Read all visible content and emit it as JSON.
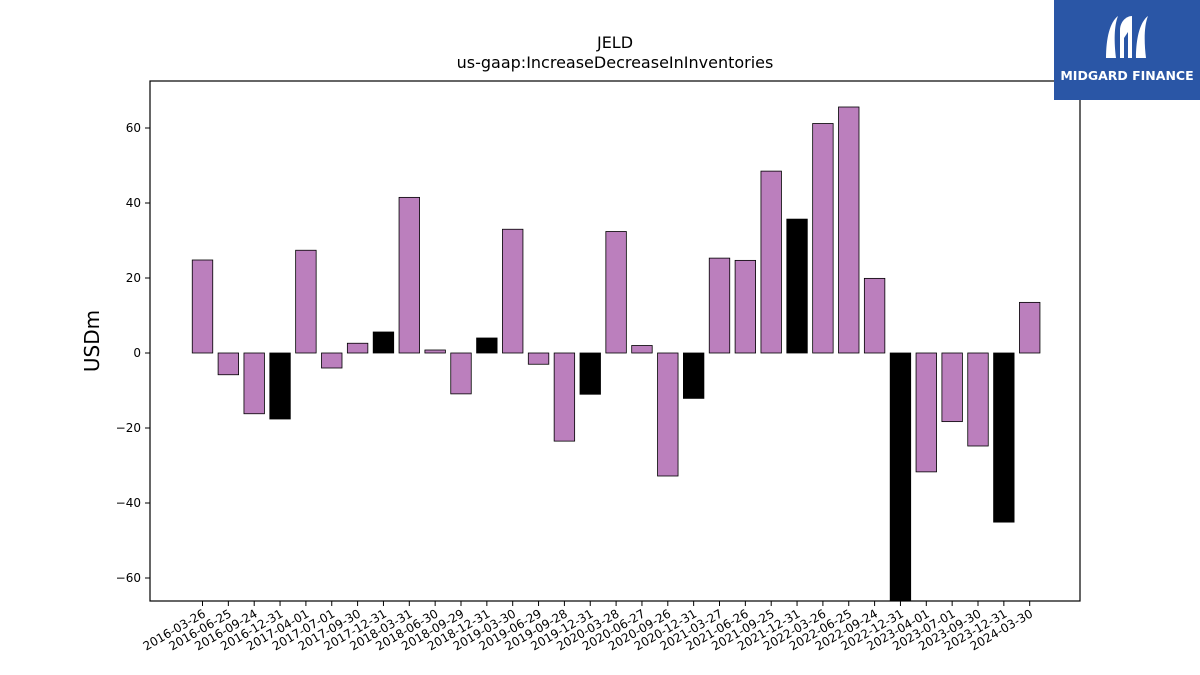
{
  "chart_data": {
    "type": "bar",
    "title": "JELD",
    "subtitle": "us-gaap:IncreaseDecreaseInInventories",
    "xlabel": "",
    "ylabel": "USDm",
    "ylim": [
      -66,
      72
    ],
    "yticks": [
      -60,
      -40,
      -20,
      0,
      20,
      40,
      60
    ],
    "ytick_labels": [
      "−60",
      "−40",
      "−20",
      "0",
      "20",
      "40",
      "60"
    ],
    "grid": false,
    "colors": {
      "quarter": "#bb7fbd",
      "annual": "#000000",
      "edge": "#000000"
    },
    "categories": [
      "2016-03-26",
      "2016-06-25",
      "2016-09-24",
      "2016-12-31",
      "2017-04-01",
      "2017-07-01",
      "2017-09-30",
      "2017-12-31",
      "2018-03-31",
      "2018-06-30",
      "2018-09-29",
      "2018-12-31",
      "2019-03-30",
      "2019-06-29",
      "2019-09-28",
      "2019-12-31",
      "2020-03-28",
      "2020-06-27",
      "2020-09-26",
      "2020-12-31",
      "2021-03-27",
      "2021-06-26",
      "2021-09-25",
      "2021-12-31",
      "2022-03-26",
      "2022-06-25",
      "2022-09-24",
      "2022-12-31",
      "2023-04-01",
      "2023-07-01",
      "2023-09-30",
      "2023-12-31",
      "2024-03-30"
    ],
    "values": [
      24.8,
      -5.8,
      -16.2,
      -17.6,
      27.4,
      -4.0,
      2.6,
      5.6,
      41.5,
      0.8,
      -10.9,
      4.0,
      33.0,
      -3.0,
      -23.5,
      -11.0,
      32.4,
      2.0,
      -32.8,
      -12.1,
      25.3,
      24.7,
      48.5,
      35.7,
      61.2,
      65.6,
      19.9,
      -66.0,
      -31.7,
      -18.3,
      -24.8,
      -45.1,
      13.5
    ],
    "annual": [
      false,
      false,
      false,
      true,
      false,
      false,
      false,
      true,
      false,
      false,
      false,
      true,
      false,
      false,
      false,
      true,
      false,
      false,
      false,
      true,
      false,
      false,
      false,
      true,
      false,
      false,
      false,
      true,
      false,
      false,
      false,
      true,
      false
    ]
  },
  "logo": {
    "text": "MIDGARD FINANCE",
    "icon": "midgard-logo-icon"
  }
}
